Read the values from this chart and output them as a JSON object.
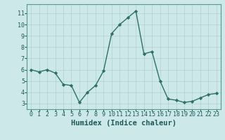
{
  "x": [
    0,
    1,
    2,
    3,
    4,
    5,
    6,
    7,
    8,
    9,
    10,
    11,
    12,
    13,
    14,
    15,
    16,
    17,
    18,
    19,
    20,
    21,
    22,
    23
  ],
  "y": [
    6.0,
    5.8,
    6.0,
    5.7,
    4.7,
    4.6,
    3.1,
    4.0,
    4.6,
    5.9,
    9.2,
    10.0,
    10.6,
    11.2,
    7.4,
    7.6,
    5.0,
    3.4,
    3.3,
    3.1,
    3.2,
    3.5,
    3.8,
    3.9
  ],
  "line_color": "#2d7068",
  "marker": "D",
  "marker_size": 2.2,
  "linewidth": 1.0,
  "bg_color": "#cce8e8",
  "grid_color": "#b0d0d0",
  "xlabel": "Humidex (Indice chaleur)",
  "ylim": [
    2.5,
    11.8
  ],
  "xlim": [
    -0.5,
    23.5
  ],
  "yticks": [
    3,
    4,
    5,
    6,
    7,
    8,
    9,
    10,
    11
  ],
  "xticks": [
    0,
    1,
    2,
    3,
    4,
    5,
    6,
    7,
    8,
    9,
    10,
    11,
    12,
    13,
    14,
    15,
    16,
    17,
    18,
    19,
    20,
    21,
    22,
    23
  ],
  "axis_color": "#1e5a5a",
  "xlabel_fontsize": 7.5,
  "tick_fontsize": 6.0,
  "spine_color": "#5a9a8a"
}
